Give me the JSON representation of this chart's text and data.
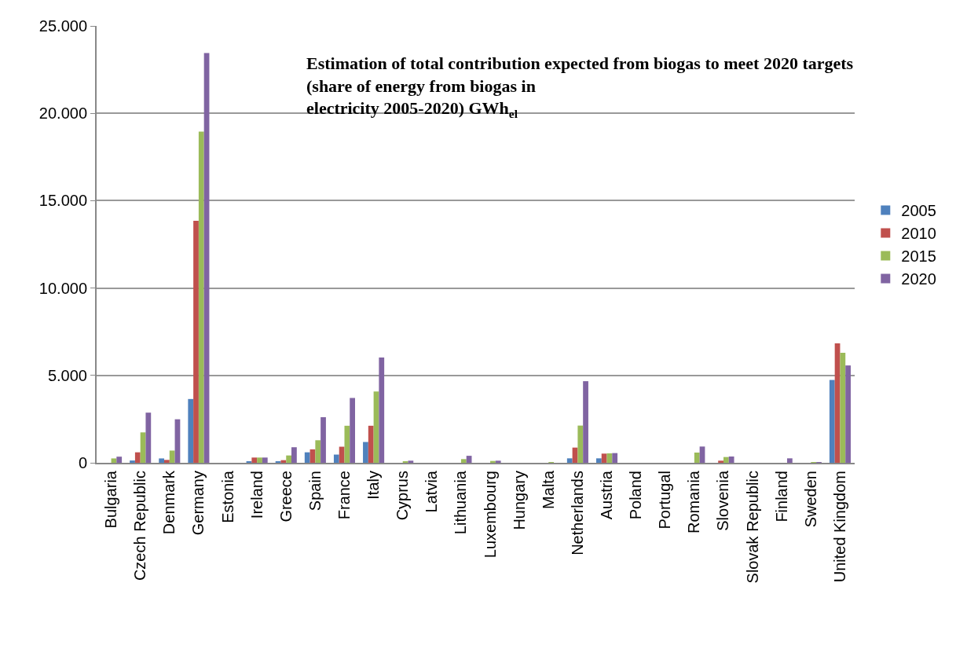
{
  "chart_data": {
    "type": "bar",
    "title": "Estimation of total contribution expected from biogas to meet 2020 targets (share of energy from biogas in electricity 2005-2020) GWh$_{el}$",
    "categories": [
      "Bulgaria",
      "Czech Republic",
      "Denmark",
      "Germany",
      "Estonia",
      "Ireland",
      "Greece",
      "Spain",
      "France",
      "Italy",
      "Cyprus",
      "Latvia",
      "Lithuania",
      "Luxembourg",
      "Hungary",
      "Malta",
      "Netherlands",
      "Austria",
      "Poland",
      "Portugal",
      "Romania",
      "Slovenia",
      "Slovak Republic",
      "Finland",
      "Sweden",
      "United Kingdom"
    ],
    "series": [
      {
        "name": "2005",
        "color": "#4f81bd",
        "values": [
          0,
          130,
          250,
          3650,
          0,
          75,
          60,
          600,
          470,
          1190,
          0,
          0,
          0,
          0,
          0,
          0,
          255,
          255,
          0,
          0,
          0,
          0,
          0,
          0,
          0,
          4740
        ]
      },
      {
        "name": "2010",
        "color": "#c0504d",
        "values": [
          0,
          600,
          165,
          13850,
          0,
          300,
          150,
          770,
          920,
          2120,
          0,
          0,
          0,
          0,
          0,
          0,
          870,
          525,
          0,
          0,
          0,
          120,
          0,
          0,
          0,
          6830
        ]
      },
      {
        "name": "2015",
        "color": "#9bbb59",
        "values": [
          250,
          1740,
          700,
          18950,
          0,
          300,
          420,
          1290,
          2120,
          4080,
          75,
          0,
          210,
          105,
          0,
          30,
          2130,
          540,
          0,
          0,
          585,
          330,
          0,
          0,
          40,
          6290
        ]
      },
      {
        "name": "2020",
        "color": "#8064a2",
        "values": [
          350,
          2870,
          2490,
          23450,
          0,
          300,
          890,
          2610,
          3710,
          6020,
          120,
          0,
          400,
          120,
          0,
          0,
          4670,
          555,
          0,
          0,
          930,
          360,
          0,
          255,
          40,
          5570
        ]
      }
    ],
    "ylim": [
      0,
      25000
    ],
    "yticks": [
      {
        "value": 0,
        "label": "0"
      },
      {
        "value": 5000,
        "label": "5.000"
      },
      {
        "value": 10000,
        "label": "10.000"
      },
      {
        "value": 15000,
        "label": "15.000"
      },
      {
        "value": 20000,
        "label": "20.000"
      },
      {
        "value": 25000,
        "label": "25.000"
      }
    ],
    "grid": "y",
    "legend": "right"
  }
}
